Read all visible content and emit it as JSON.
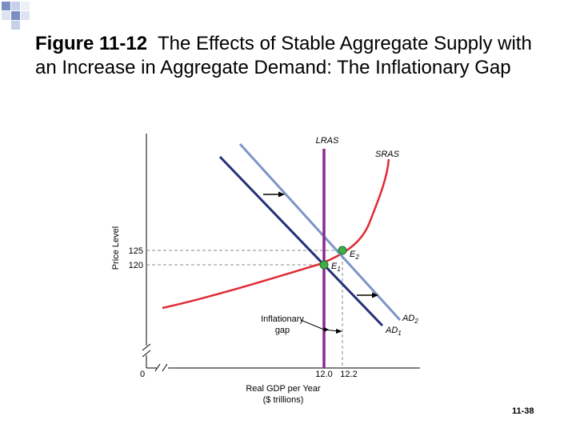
{
  "slide": {
    "title_bold": "Figure 11-12",
    "title_text": "The Effects of Stable Aggregate Supply with an Increase in Aggregate Demand: The Inflationary Gap",
    "slide_number": "11-38"
  },
  "diagram": {
    "y_axis_label": "Price Level",
    "x_axis_label_line1": "Real GDP per Year",
    "x_axis_label_line2": "($ trillions)",
    "origin_label": "0",
    "y_ticks": [
      "125",
      "120"
    ],
    "x_ticks": [
      "12.0",
      "12.2"
    ],
    "curves": {
      "lras": "LRAS",
      "sras": "SRAS",
      "ad1": "AD",
      "ad1_sub": "1",
      "ad2": "AD",
      "ad2_sub": "2"
    },
    "points": {
      "e1": "E",
      "e1_sub": "1",
      "e2": "E",
      "e2_sub": "2"
    },
    "annotation_line1": "Inflationary",
    "annotation_line2": "gap",
    "colors": {
      "lras": "#8b2a8f",
      "sras": "#e02a35",
      "ad1": "#26307a",
      "ad2": "#7f95c8",
      "equilibrium": "#3fae49",
      "corner_blue": "#7b8fc2"
    }
  }
}
